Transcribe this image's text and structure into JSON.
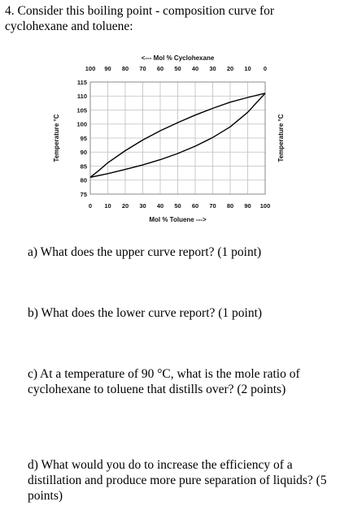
{
  "question": {
    "line1": "4. Consider this boiling point - composition curve for",
    "line2": "cyclohexane and toluene:"
  },
  "chart_data": {
    "type": "line",
    "top_axis_label": "<--- Mol % Cyclohexane",
    "xlabel": "Mol % Toluene --->",
    "ylabel_left": "Temperature °C",
    "ylabel_right": "Temperature °C",
    "x_ticks": [
      "0",
      "10",
      "20",
      "30",
      "40",
      "50",
      "60",
      "70",
      "80",
      "90",
      "100"
    ],
    "top_ticks": [
      "100",
      "90",
      "80",
      "70",
      "60",
      "50",
      "40",
      "30",
      "20",
      "10",
      "0"
    ],
    "y_ticks": [
      "75",
      "80",
      "85",
      "90",
      "95",
      "100",
      "105",
      "110",
      "115"
    ],
    "xlim": [
      0,
      100
    ],
    "ylim": [
      75,
      115
    ],
    "grid": true,
    "series": [
      {
        "x": [
          0,
          5,
          10,
          20,
          30,
          40,
          50,
          60,
          70,
          80,
          90,
          100
        ],
        "y": [
          81,
          83.5,
          86.2,
          90.5,
          94.3,
          97.6,
          100.5,
          103.2,
          105.6,
          107.8,
          109.5,
          111
        ]
      },
      {
        "x": [
          0,
          10,
          20,
          30,
          40,
          50,
          60,
          70,
          80,
          90,
          100
        ],
        "y": [
          81,
          82.3,
          83.8,
          85.4,
          87.3,
          89.5,
          92.1,
          95.2,
          99,
          104.2,
          111
        ]
      }
    ]
  },
  "questions": {
    "a": "a) What does the upper curve report? (1 point)",
    "b": "b) What does the lower curve report? (1 point)",
    "c_line1": "c) At a temperature of 90 °C, what is the mole ratio of",
    "c_line2": "cyclohexane to toluene that distills over? (2 points)",
    "d_line1": "d) What would you do to increase the efficiency of a",
    "d_line2": "distillation and produce more pure separation of liquids? (5",
    "d_line3": "points)"
  }
}
